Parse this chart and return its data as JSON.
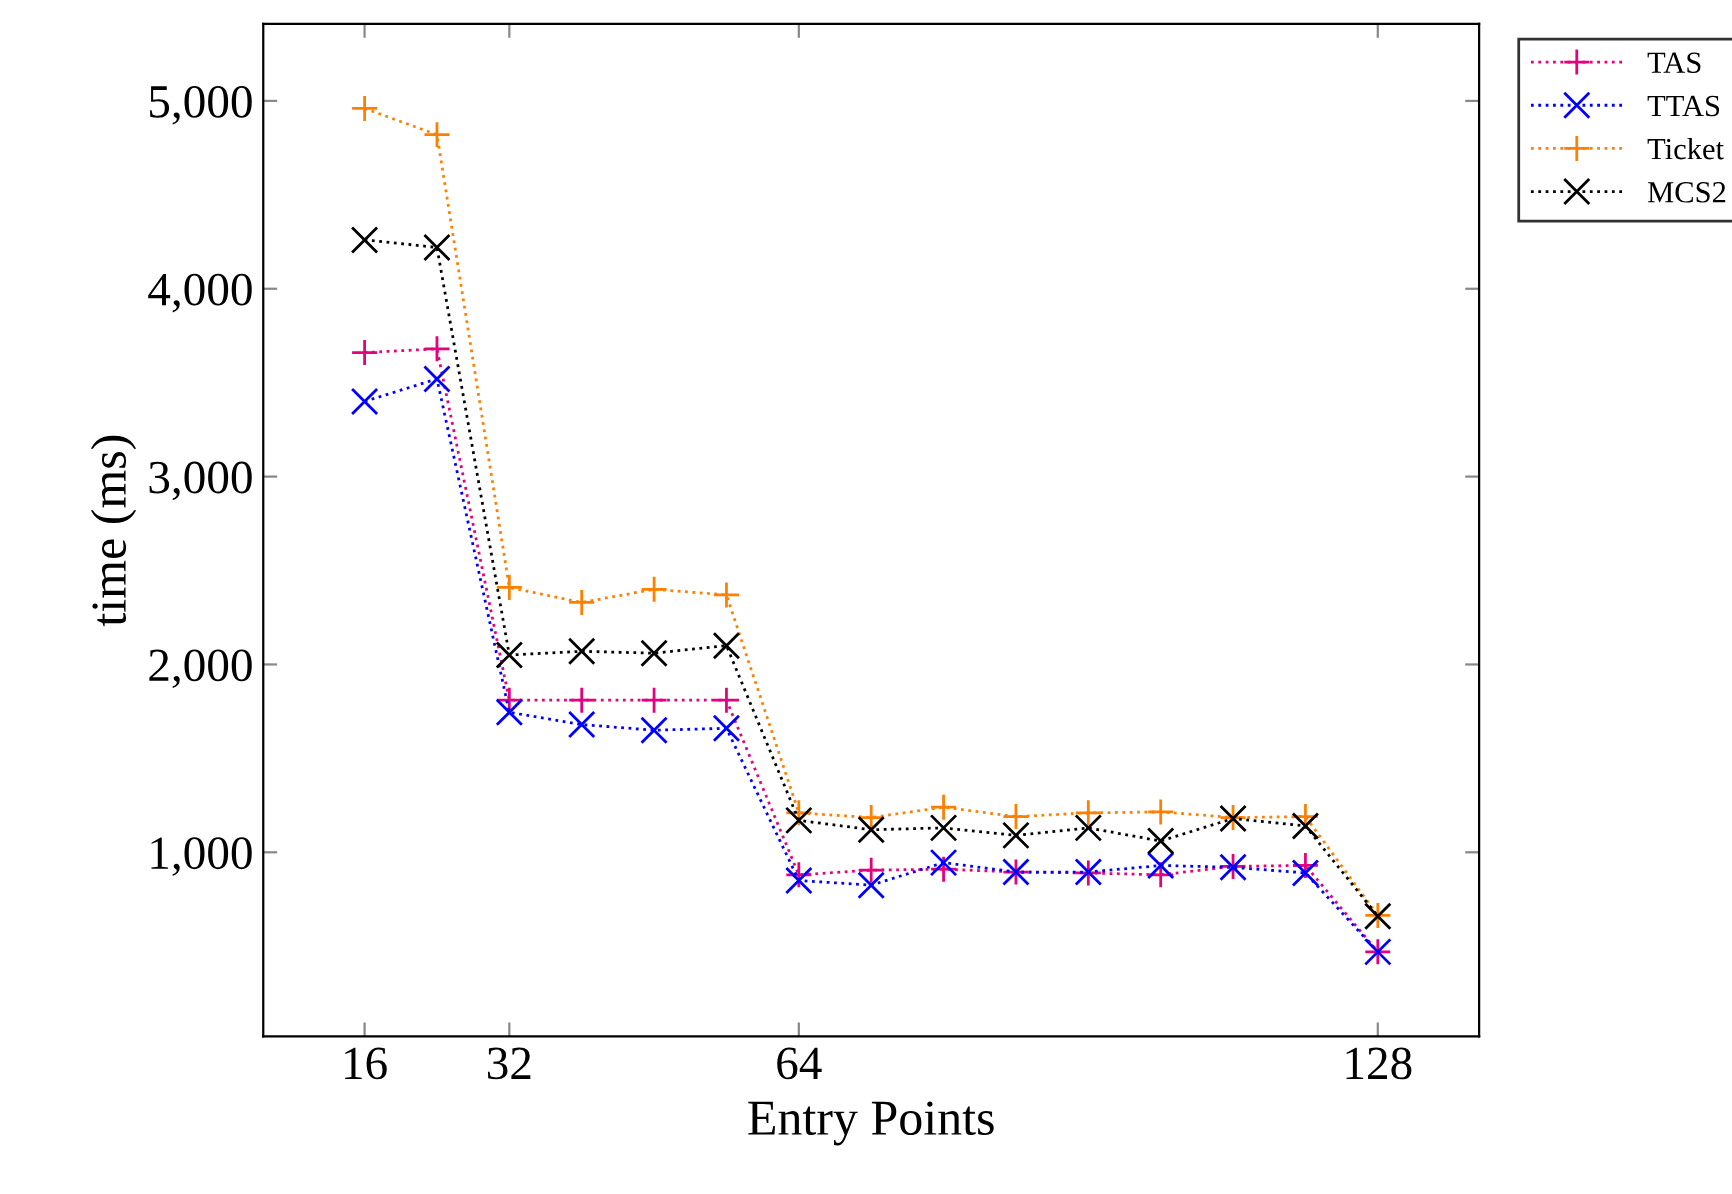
{
  "chart_data": {
    "type": "line",
    "xlabel": "Entry Points",
    "ylabel": "time (ms)",
    "x": [
      16,
      24,
      32,
      40,
      48,
      56,
      64,
      72,
      80,
      88,
      96,
      104,
      112,
      120,
      128
    ],
    "series": [
      {
        "name": "TAS",
        "color": "#e6007e",
        "marker": "plus",
        "values": [
          3660,
          3680,
          1810,
          1810,
          1810,
          1810,
          880,
          905,
          910,
          895,
          890,
          880,
          925,
          930,
          470
        ]
      },
      {
        "name": "TTAS",
        "color": "#0000ff",
        "marker": "cross",
        "values": [
          3400,
          3520,
          1745,
          1680,
          1650,
          1660,
          850,
          825,
          945,
          895,
          895,
          930,
          920,
          890,
          470
        ]
      },
      {
        "name": "Ticket",
        "color": "#ff8000",
        "marker": "plus",
        "values": [
          4960,
          4820,
          2410,
          2330,
          2400,
          2370,
          1210,
          1185,
          1240,
          1190,
          1210,
          1215,
          1185,
          1190,
          664
        ]
      },
      {
        "name": "MCS2",
        "color": "#000000",
        "marker": "cross",
        "values": [
          4260,
          4220,
          2050,
          2070,
          2060,
          2100,
          1170,
          1120,
          1130,
          1090,
          1130,
          1060,
          1180,
          1140,
          660
        ]
      }
    ],
    "xlim": [
      4.8,
      139.2
    ],
    "xticks": [
      16,
      32,
      64,
      128
    ],
    "ylim": [
      20,
      5410
    ],
    "yticks": [
      {
        "value": 1000,
        "label": "1,000"
      },
      {
        "value": 2000,
        "label": "2,000"
      },
      {
        "value": 3000,
        "label": "3,000"
      },
      {
        "value": 4000,
        "label": "4,000"
      },
      {
        "value": 5000,
        "label": "5,000"
      }
    ],
    "line_style": "dotted",
    "grid": false,
    "legend": "top right outside"
  }
}
